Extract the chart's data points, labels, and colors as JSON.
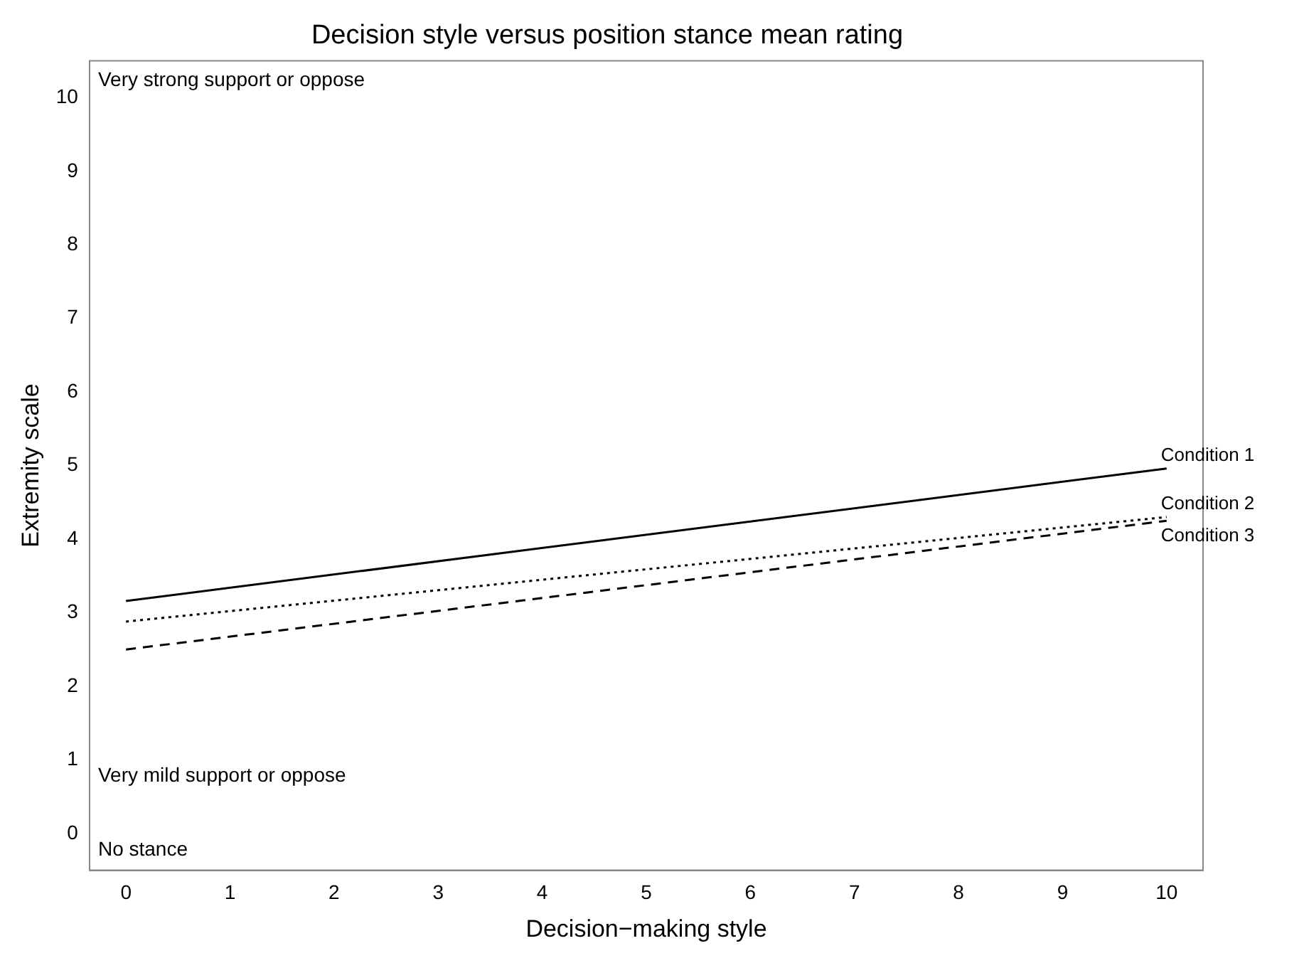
{
  "chart_data": {
    "type": "line",
    "title": "Decision style versus position stance mean rating",
    "xlabel": "Decision−making style",
    "ylabel": "Extremity scale",
    "x": [
      0,
      10
    ],
    "xlim": [
      -0.35,
      10.35
    ],
    "xticks": [
      0,
      1,
      2,
      3,
      4,
      5,
      6,
      7,
      8,
      9,
      10
    ],
    "ylim": [
      -0.5,
      10.5
    ],
    "yticks": [
      0,
      1,
      2,
      3,
      4,
      5,
      6,
      7,
      8,
      9,
      10
    ],
    "grid": false,
    "legend": false,
    "marker": "none",
    "series": [
      {
        "name": "Condition 1",
        "color": "#000000",
        "line_style": "solid",
        "values": [
          3.16,
          4.96
        ]
      },
      {
        "name": "Condition 2",
        "color": "#000000",
        "line_style": "dotted",
        "values": [
          2.88,
          4.3
        ]
      },
      {
        "name": "Condition 3",
        "color": "#000000",
        "line_style": "dashed",
        "values": [
          2.5,
          4.25
        ]
      }
    ],
    "annotations": [
      "Very strong support or oppose",
      "Very mild support or oppose",
      "No stance"
    ]
  }
}
